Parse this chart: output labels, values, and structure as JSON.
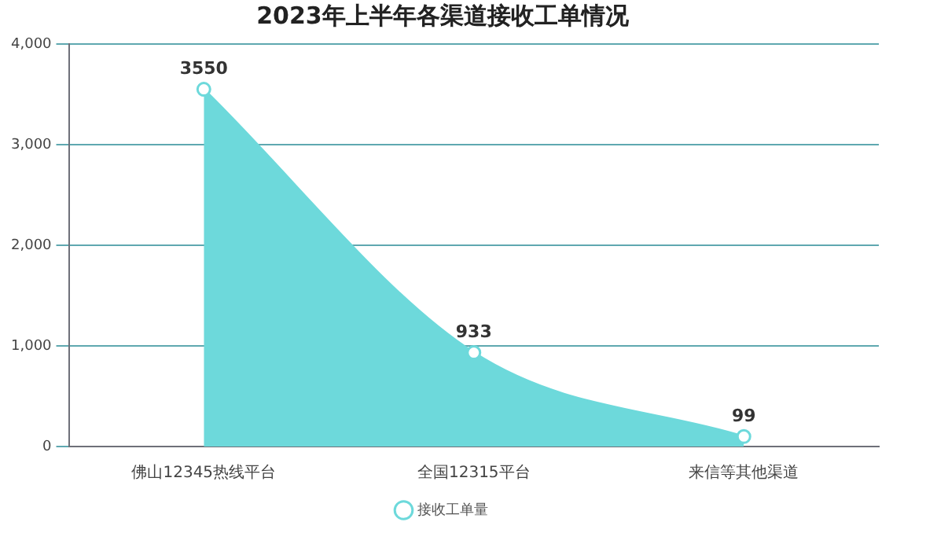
{
  "chart_data": {
    "type": "area",
    "title": "2023年上半年各渠道接收工单情况",
    "categories": [
      "佛山12345热线平台",
      "全国12315平台",
      "来信等其他渠道"
    ],
    "series": [
      {
        "name": "接收工单量",
        "color": "#6dd9db",
        "values": [
          3550,
          933,
          99
        ]
      }
    ],
    "ylim": [
      0,
      4000
    ],
    "yticks": [
      {
        "value": 0,
        "label": "0"
      },
      {
        "value": 1000,
        "label": "1,000"
      },
      {
        "value": 2000,
        "label": "2,000"
      },
      {
        "value": 3000,
        "label": "3,000"
      },
      {
        "value": 4000,
        "label": "4,000"
      }
    ],
    "grid": "y",
    "legend": "bottom",
    "marker": "circle",
    "data_labels": true
  }
}
